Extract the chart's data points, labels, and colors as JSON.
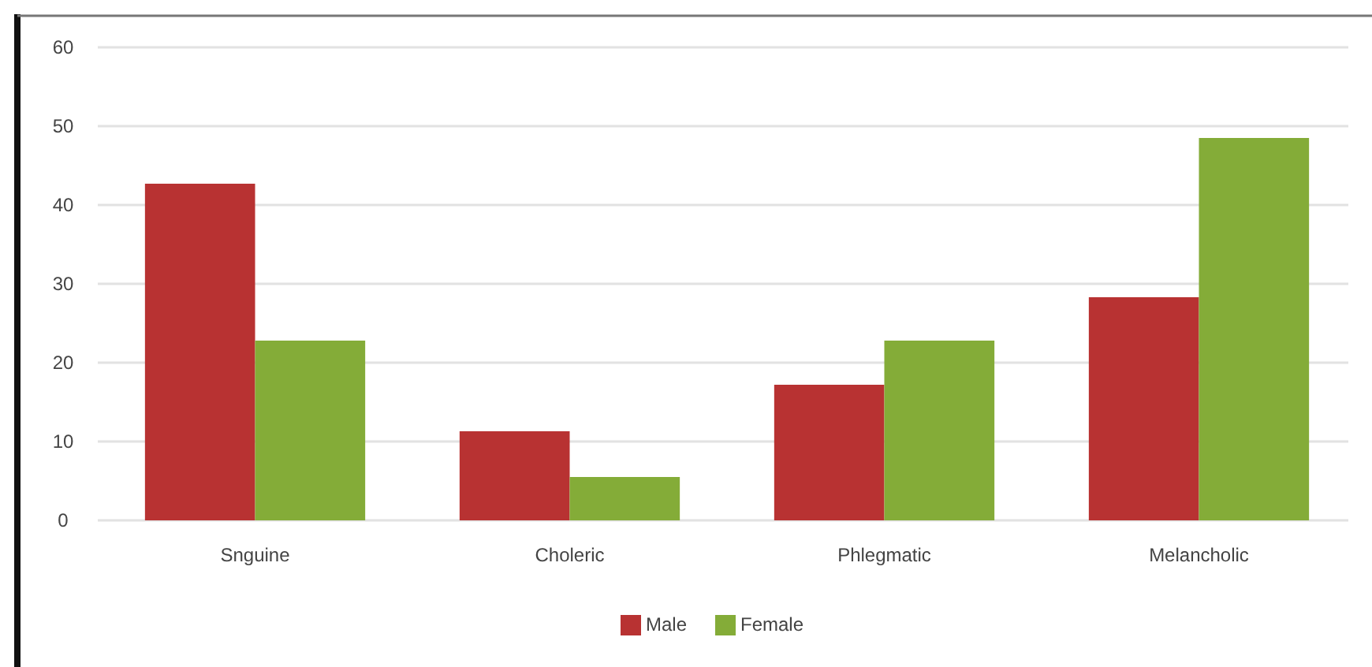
{
  "chart_data": {
    "type": "bar",
    "categories": [
      "Snguine",
      "Choleric",
      "Phlegmatic",
      "Melancholic"
    ],
    "series": [
      {
        "name": "Male",
        "color": "#b83232",
        "values": [
          42.7,
          11.3,
          17.2,
          28.3
        ]
      },
      {
        "name": "Female",
        "color": "#84ac38",
        "values": [
          22.8,
          5.5,
          22.8,
          48.5
        ]
      }
    ],
    "ylim": [
      0,
      60
    ],
    "yticks": [
      0,
      10,
      20,
      30,
      40,
      50,
      60
    ],
    "grid": "y",
    "legend": "bottom"
  }
}
